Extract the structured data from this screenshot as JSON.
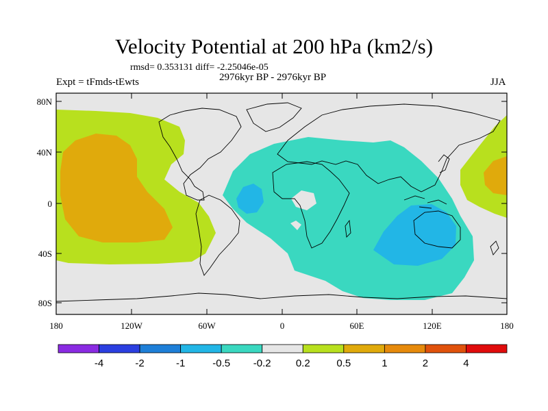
{
  "title": "Velocity Potential at 200 hPa (km2/s)",
  "stats": "rmsd= 0.353131 diff= -2.25046e-05",
  "subtitle": "2976kyr BP - 2976kyr BP",
  "left_label": "Expt = tFmds-tEwts",
  "right_label": "JJA",
  "lat_ticks": [
    "80N",
    "40N",
    "0",
    "40S",
    "80S"
  ],
  "lon_ticks": [
    "180",
    "120W",
    "60W",
    "0",
    "60E",
    "120E",
    "180"
  ],
  "colorbar": {
    "colors": [
      "#8a2be2",
      "#2b3fe0",
      "#1e7fd8",
      "#22b6e6",
      "#3ad8c0",
      "#e6e6e6",
      "#b8e01e",
      "#e0aa0c",
      "#e68a0c",
      "#e0520c",
      "#e00c0c"
    ],
    "labels": [
      "-4",
      "-2",
      "-1",
      "-0.5",
      "-0.2",
      "0.2",
      "0.5",
      "1",
      "2",
      "4"
    ]
  },
  "colors": {
    "land_outline": "#000000",
    "ocean_neutral": "#e6e6e6"
  }
}
